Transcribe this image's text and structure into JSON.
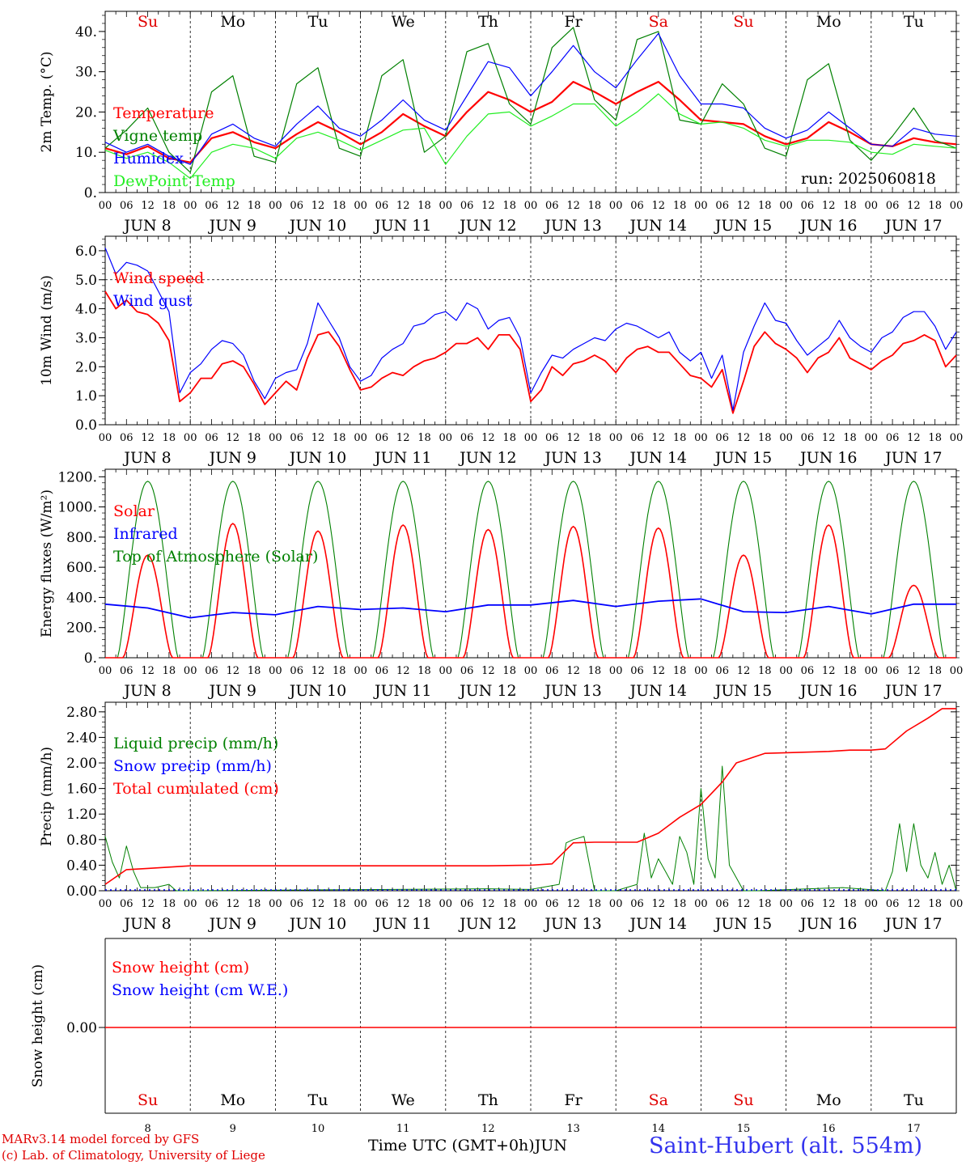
{
  "days": [
    "8",
    "9",
    "10",
    "11",
    "12",
    "13",
    "14",
    "15",
    "16",
    "17"
  ],
  "day_labels": [
    "JUN  8",
    "JUN  9",
    "JUN 10",
    "JUN 11",
    "JUN 12",
    "JUN 13",
    "JUN 14",
    "JUN 15",
    "JUN 16",
    "JUN 17"
  ],
  "weekdays": [
    "Su",
    "Mo",
    "Tu",
    "We",
    "Th",
    "Fr",
    "Sa",
    "Su",
    "Mo",
    "Tu"
  ],
  "weekday_colors": [
    "#e00000",
    "#000000",
    "#000000",
    "#000000",
    "#000000",
    "#000000",
    "#e00000",
    "#e00000",
    "#000000",
    "#000000"
  ],
  "hour_ticks": [
    "00",
    "06",
    "12",
    "18"
  ],
  "colors": {
    "red": "#ff0000",
    "green": "#008000",
    "blue": "#0000ff",
    "lime": "#22ee22",
    "black": "#000000"
  },
  "run_label": "run: 2025060818",
  "footer": {
    "credit1": "MARv3.14 model forced by GFS",
    "credit2": "(c) Lab. of Climatology, University of Liege",
    "xlabel": "Time UTC (GMT+0h)",
    "month": "JUN",
    "station": "Saint-Hubert (alt. 554m)"
  },
  "chart_data": [
    {
      "type": "line",
      "ylabel": "2m Temp. (°C)",
      "ylim": [
        0,
        45
      ],
      "yticks": [
        "0.",
        "10.",
        "20.",
        "30.",
        "40."
      ],
      "x_unit": "hours since 2025-06-08 00 UTC",
      "legend": [
        "Temperature",
        "Vigne temp",
        "Humidex",
        "DewPoint Temp"
      ],
      "series": [
        {
          "name": "Temperature",
          "color": "red",
          "x": [
            0,
            6,
            12,
            18,
            24,
            30,
            36,
            42,
            48,
            54,
            60,
            66,
            72,
            78,
            84,
            90,
            96,
            102,
            108,
            114,
            120,
            126,
            132,
            138,
            144,
            150,
            156,
            162,
            168,
            174,
            180,
            186,
            192,
            198,
            204,
            210,
            216,
            222,
            228,
            234,
            240
          ],
          "y": [
            11,
            9.5,
            11.5,
            8.5,
            7.5,
            13.5,
            15,
            12.5,
            11,
            14.5,
            17.5,
            15,
            12,
            15,
            19.5,
            16.5,
            14,
            20,
            25,
            23,
            20,
            22.5,
            27.5,
            25,
            22,
            25,
            27.5,
            23,
            18,
            17.5,
            17,
            14,
            12,
            13.5,
            17.5,
            15,
            12,
            11.5,
            13.5,
            12.5,
            12
          ]
        },
        {
          "name": "Vigne temp",
          "color": "green",
          "x": [
            0,
            6,
            12,
            18,
            24,
            30,
            36,
            42,
            48,
            54,
            60,
            66,
            72,
            78,
            84,
            90,
            96,
            102,
            108,
            114,
            120,
            126,
            132,
            138,
            144,
            150,
            156,
            162,
            168,
            174,
            180,
            186,
            192,
            198,
            204,
            210,
            216,
            222,
            228,
            234,
            240
          ],
          "y": [
            11,
            15.5,
            21,
            10,
            5,
            25,
            29,
            9,
            7.5,
            27,
            31,
            11,
            9,
            29,
            33,
            10,
            14,
            35,
            37,
            22,
            17,
            36,
            41,
            23,
            18,
            38,
            40,
            18,
            17,
            27,
            22,
            11,
            9,
            28,
            32,
            13,
            8,
            14,
            21,
            13,
            11
          ]
        },
        {
          "name": "Humidex",
          "color": "blue",
          "x": [
            0,
            6,
            12,
            18,
            24,
            30,
            36,
            42,
            48,
            54,
            60,
            66,
            72,
            78,
            84,
            90,
            96,
            102,
            108,
            114,
            120,
            126,
            132,
            138,
            144,
            150,
            156,
            162,
            168,
            174,
            180,
            186,
            192,
            198,
            204,
            210,
            216,
            222,
            228,
            234,
            240
          ],
          "y": [
            12.5,
            10,
            12,
            9,
            7,
            14.5,
            17,
            13.5,
            11.5,
            17,
            21.5,
            16,
            14,
            18,
            23,
            18,
            15.5,
            24,
            32.5,
            31,
            24,
            30,
            36.5,
            30,
            26,
            33,
            39.5,
            29,
            22,
            22,
            21,
            16,
            13.5,
            15.5,
            20,
            16,
            12,
            11.5,
            16,
            14.5,
            14
          ]
        },
        {
          "name": "DewPoint Temp",
          "color": "lime",
          "x": [
            0,
            6,
            12,
            18,
            24,
            30,
            36,
            42,
            48,
            54,
            60,
            66,
            72,
            78,
            84,
            90,
            96,
            102,
            108,
            114,
            120,
            126,
            132,
            138,
            144,
            150,
            156,
            162,
            168,
            174,
            180,
            186,
            192,
            198,
            204,
            210,
            216,
            222,
            228,
            234,
            240
          ],
          "y": [
            10.5,
            8.5,
            10,
            7.5,
            3.5,
            10,
            12,
            11,
            8.5,
            13.5,
            15,
            13,
            10.5,
            13,
            15.5,
            16,
            7,
            14,
            19.5,
            20,
            16.5,
            19,
            22,
            22,
            16.5,
            20,
            24.5,
            19.5,
            17,
            17.5,
            16,
            13,
            11.5,
            13,
            13,
            12.5,
            10,
            9.5,
            12,
            11.5,
            11
          ]
        }
      ]
    },
    {
      "type": "line",
      "ylabel": "10m Wind (m/s)",
      "ylim": [
        0,
        6.5
      ],
      "yticks": [
        "0.0",
        "1.0",
        "2.0",
        "3.0",
        "4.0",
        "5.0",
        "6.0"
      ],
      "reference_line": 5.0,
      "legend": [
        "Wind speed",
        "Wind gust"
      ],
      "series": [
        {
          "name": "Wind speed",
          "color": "red",
          "x": [
            0,
            3,
            6,
            9,
            12,
            15,
            18,
            21,
            24,
            27,
            30,
            33,
            36,
            39,
            42,
            45,
            48,
            51,
            54,
            57,
            60,
            63,
            66,
            69,
            72,
            75,
            78,
            81,
            84,
            87,
            90,
            93,
            96,
            99,
            102,
            105,
            108,
            111,
            114,
            117,
            120,
            123,
            126,
            129,
            132,
            135,
            138,
            141,
            144,
            147,
            150,
            153,
            156,
            159,
            162,
            165,
            168,
            171,
            174,
            177,
            180,
            183,
            186,
            189,
            192,
            195,
            198,
            201,
            204,
            207,
            210,
            213,
            216,
            219,
            222,
            225,
            228,
            231,
            234,
            237,
            240
          ],
          "y": [
            4.6,
            4.0,
            4.3,
            3.9,
            3.8,
            3.5,
            2.9,
            0.8,
            1.1,
            1.6,
            1.6,
            2.1,
            2.2,
            2.0,
            1.4,
            0.7,
            1.1,
            1.5,
            1.2,
            2.3,
            3.1,
            3.2,
            2.7,
            1.9,
            1.2,
            1.3,
            1.6,
            1.8,
            1.7,
            2.0,
            2.2,
            2.3,
            2.5,
            2.8,
            2.8,
            3.0,
            2.6,
            3.1,
            3.1,
            2.6,
            0.8,
            1.2,
            2.0,
            1.7,
            2.1,
            2.2,
            2.4,
            2.2,
            1.8,
            2.3,
            2.6,
            2.7,
            2.5,
            2.5,
            2.1,
            1.7,
            1.6,
            1.3,
            1.9,
            0.4,
            1.5,
            2.7,
            3.2,
            2.8,
            2.6,
            2.3,
            1.8,
            2.3,
            2.5,
            3.0,
            2.3,
            2.1,
            1.9,
            2.2,
            2.4,
            2.8,
            2.9,
            3.1,
            2.9,
            2.0,
            2.4
          ]
        },
        {
          "name": "Wind gust",
          "color": "blue",
          "x": [
            0,
            3,
            6,
            9,
            12,
            15,
            18,
            21,
            24,
            27,
            30,
            33,
            36,
            39,
            42,
            45,
            48,
            51,
            54,
            57,
            60,
            63,
            66,
            69,
            72,
            75,
            78,
            81,
            84,
            87,
            90,
            93,
            96,
            99,
            102,
            105,
            108,
            111,
            114,
            117,
            120,
            123,
            126,
            129,
            132,
            135,
            138,
            141,
            144,
            147,
            150,
            153,
            156,
            159,
            162,
            165,
            168,
            171,
            174,
            177,
            180,
            183,
            186,
            189,
            192,
            195,
            198,
            201,
            204,
            207,
            210,
            213,
            216,
            219,
            222,
            225,
            228,
            231,
            234,
            237,
            240
          ],
          "y": [
            6.1,
            5.2,
            5.6,
            5.5,
            5.3,
            4.6,
            3.9,
            1.1,
            1.8,
            2.1,
            2.6,
            2.9,
            2.8,
            2.4,
            1.5,
            0.9,
            1.6,
            1.8,
            1.9,
            2.8,
            4.2,
            3.6,
            3.0,
            2.0,
            1.5,
            1.7,
            2.3,
            2.6,
            2.8,
            3.4,
            3.5,
            3.8,
            3.9,
            3.6,
            4.2,
            4.0,
            3.3,
            3.6,
            3.7,
            3.0,
            1.1,
            1.8,
            2.4,
            2.3,
            2.6,
            2.8,
            3.0,
            2.9,
            3.3,
            3.5,
            3.4,
            3.2,
            3.0,
            3.2,
            2.5,
            2.2,
            2.5,
            1.6,
            2.4,
            0.5,
            2.5,
            3.4,
            4.2,
            3.6,
            3.5,
            2.9,
            2.4,
            2.7,
            3.0,
            3.6,
            3.0,
            2.7,
            2.5,
            3.0,
            3.2,
            3.7,
            3.9,
            3.9,
            3.4,
            2.6,
            3.2
          ]
        }
      ]
    },
    {
      "type": "line",
      "ylabel": "Energy fluxes (W/m²)",
      "ylim": [
        0,
        1250
      ],
      "yticks": [
        "0.",
        "200.",
        "400.",
        "600.",
        "800.",
        "1000.",
        "1200."
      ],
      "legend": [
        "Solar",
        "Infrared",
        "Top of Atmosphere (Solar)"
      ],
      "toa_peak": 1170,
      "solar_peaks": [
        680,
        890,
        840,
        880,
        850,
        870,
        860,
        680,
        880,
        480
      ],
      "series": [
        {
          "name": "Infrared",
          "color": "blue",
          "x": [
            0,
            12,
            24,
            36,
            48,
            60,
            72,
            84,
            96,
            108,
            120,
            132,
            144,
            156,
            168,
            180,
            192,
            204,
            216,
            228,
            240
          ],
          "y": [
            355,
            330,
            265,
            300,
            285,
            340,
            320,
            330,
            305,
            350,
            350,
            380,
            340,
            375,
            390,
            305,
            300,
            340,
            290,
            355,
            355
          ]
        }
      ]
    },
    {
      "type": "line",
      "ylabel": "Precip (mm/h)",
      "ylim": [
        0,
        2.95
      ],
      "yticks": [
        "0.00",
        "0.40",
        "0.80",
        "1.20",
        "1.60",
        "2.00",
        "2.40",
        "2.80"
      ],
      "legend": [
        "Liquid precip (mm/h)",
        "Snow precip (mm/h)",
        "Total cumulated (cm)"
      ],
      "series": [
        {
          "name": "Liquid precip (mm/h)",
          "color": "green",
          "x": [
            0,
            2,
            4,
            6,
            8,
            10,
            14,
            18,
            20,
            24,
            108,
            120,
            128,
            130,
            132,
            135,
            138,
            144,
            150,
            152,
            154,
            156,
            158,
            160,
            162,
            164,
            166,
            168,
            170,
            172,
            174,
            176,
            180,
            184,
            208,
            220,
            222,
            224,
            226,
            228,
            230,
            232,
            234,
            236,
            238,
            240
          ],
          "y": [
            0.85,
            0.45,
            0.2,
            0.7,
            0.3,
            0.05,
            0.05,
            0.1,
            0.0,
            0.0,
            0.03,
            0.02,
            0.1,
            0.75,
            0.8,
            0.85,
            0.0,
            0.0,
            0.1,
            0.9,
            0.2,
            0.5,
            0.3,
            0.1,
            0.85,
            0.6,
            0.1,
            1.6,
            0.5,
            0.2,
            1.95,
            0.4,
            0.0,
            0.0,
            0.05,
            0.0,
            0.3,
            1.05,
            0.3,
            1.05,
            0.4,
            0.2,
            0.6,
            0.1,
            0.4,
            0.0
          ]
        },
        {
          "name": "Total cumulated (cm)",
          "color": "red",
          "x": [
            0,
            6,
            12,
            24,
            48,
            96,
            108,
            120,
            126,
            132,
            138,
            150,
            156,
            162,
            168,
            174,
            178,
            186,
            192,
            204,
            210,
            216,
            220,
            226,
            232,
            236,
            240
          ],
          "y": [
            0.1,
            0.33,
            0.35,
            0.39,
            0.39,
            0.39,
            0.39,
            0.4,
            0.42,
            0.75,
            0.76,
            0.76,
            0.9,
            1.15,
            1.35,
            1.7,
            2.0,
            2.15,
            2.16,
            2.18,
            2.2,
            2.2,
            2.22,
            2.5,
            2.7,
            2.85,
            2.85
          ]
        }
      ]
    },
    {
      "type": "line",
      "ylabel": "Snow height (cm)",
      "yticks": [
        "0.00"
      ],
      "legend": [
        "Snow height (cm)",
        "Snow height (cm W.E.)"
      ],
      "series": [
        {
          "name": "Snow height (cm)",
          "color": "red",
          "x": [
            0,
            240
          ],
          "y": [
            0,
            0
          ]
        }
      ]
    }
  ]
}
